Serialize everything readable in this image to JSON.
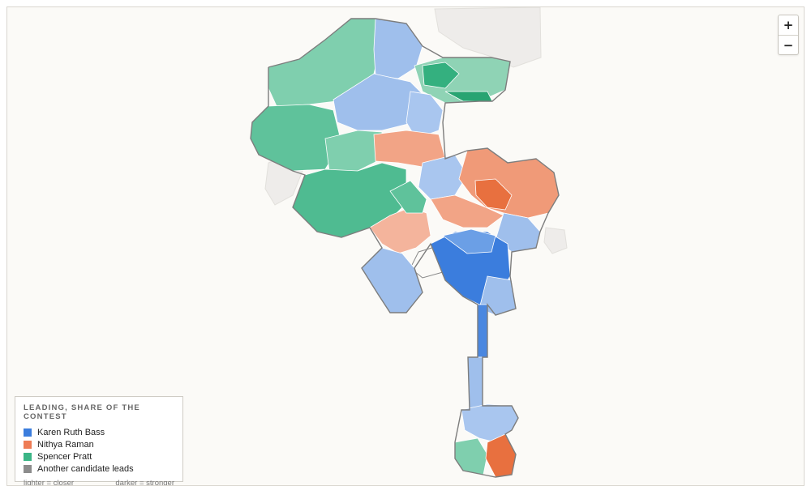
{
  "colors": {
    "bass": "#3b7ddd",
    "raman": "#ee7c55",
    "pratt": "#3bb586",
    "other": "#8c8c8c",
    "bass_light": "#9fbfec",
    "raman_light": "#f5b39b",
    "pratt_light": "#92d4b8",
    "land": "#eeecea",
    "background": "#fbfaf7"
  },
  "zoom": {
    "in_label": "+",
    "out_label": "−"
  },
  "legend": {
    "title": "LEADING, SHARE OF THE CONTEST",
    "items": [
      {
        "label": "Karen Ruth Bass",
        "color": "#3b7ddd"
      },
      {
        "label": "Nithya Raman",
        "color": "#ee7c55"
      },
      {
        "label": "Spencer Pratt",
        "color": "#3bb586"
      },
      {
        "label": "Another candidate leads",
        "color": "#8c8c8c"
      }
    ],
    "note_left": "lighter = closer",
    "note_right": "darker = stronger"
  }
}
